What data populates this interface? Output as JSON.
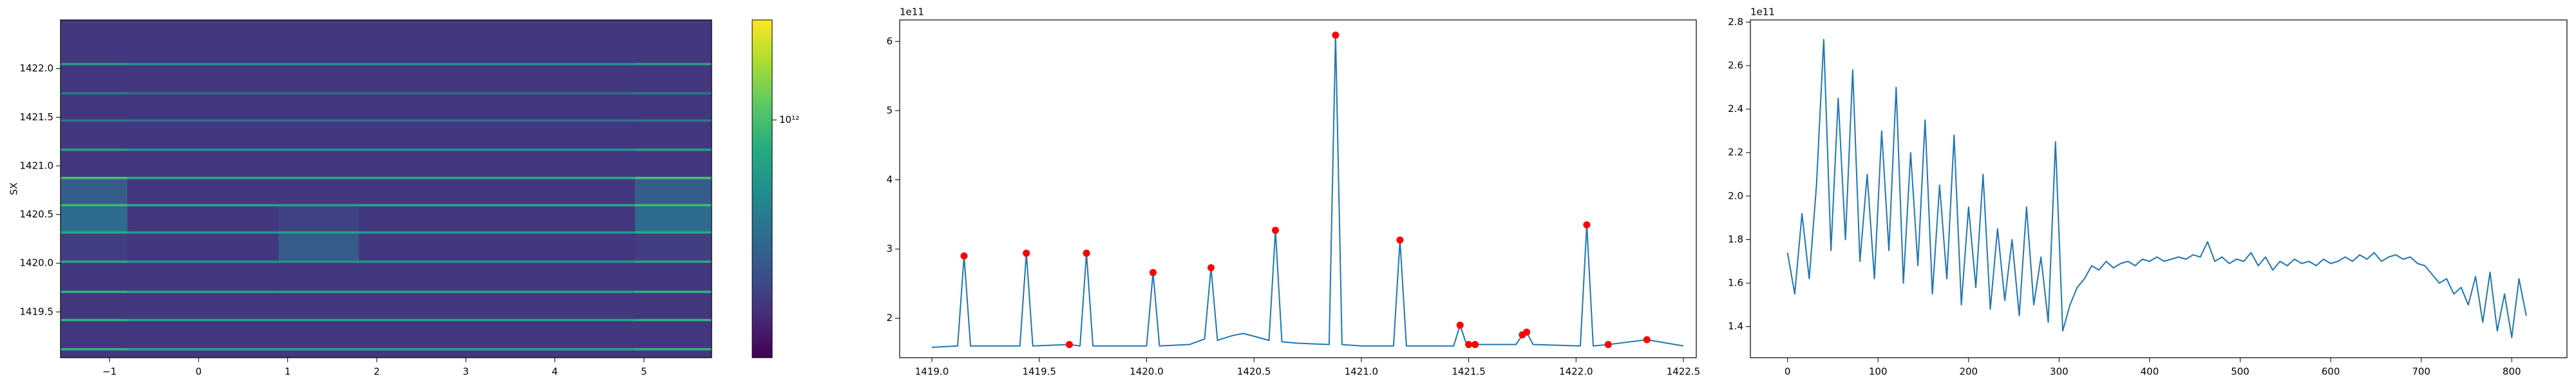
{
  "chart_data": [
    {
      "type": "heatmap",
      "ylabel": "SX",
      "colormap": "viridis",
      "color_scale": "log",
      "xlim": [
        -1.55,
        5.76
      ],
      "ylim": [
        1419.03,
        1422.5
      ],
      "xticks": [
        {
          "value": -1,
          "label": "−1"
        },
        0,
        1,
        2,
        3,
        4,
        5
      ],
      "yticks": [
        {
          "value": 1419.5,
          "label": "1419.5"
        },
        {
          "value": 1420,
          "label": "1420.0"
        },
        {
          "value": 1420.5,
          "label": "1420.5"
        },
        {
          "value": 1421,
          "label": "1421.0"
        },
        {
          "value": 1421.5,
          "label": "1421.5"
        },
        {
          "value": 1422,
          "label": "1422.0"
        }
      ],
      "clim": [
        63000000000.0,
        3200000000000.0
      ],
      "cticks": [
        {
          "value": 1000000000000.0,
          "label": "10¹²"
        }
      ],
      "x_edges": [
        -1.55,
        -0.8,
        0.9,
        1.8,
        4.9,
        5.76
      ],
      "y_edges": [
        1419.03,
        1419.108,
        1419.132,
        1419.408,
        1419.432,
        1419.698,
        1419.722,
        1420.008,
        1420.032,
        1420.308,
        1420.332,
        1420.588,
        1420.612,
        1420.868,
        1420.892,
        1421.158,
        1421.182,
        1421.458,
        1421.482,
        1421.738,
        1421.762,
        1422.038,
        1422.062,
        1422.5
      ],
      "z": [
        [
          120000000000.0,
          120000000000.0,
          120000000000.0,
          120000000000.0,
          120000000000.0
        ],
        [
          800000000000.0,
          600000000000.0,
          600000000000.0,
          600000000000.0,
          800000000000.0
        ],
        [
          120000000000.0,
          120000000000.0,
          120000000000.0,
          120000000000.0,
          120000000000.0
        ],
        [
          800000000000.0,
          600000000000.0,
          600000000000.0,
          600000000000.0,
          800000000000.0
        ],
        [
          120000000000.0,
          120000000000.0,
          120000000000.0,
          120000000000.0,
          120000000000.0
        ],
        [
          800000000000.0,
          600000000000.0,
          600000000000.0,
          600000000000.0,
          800000000000.0
        ],
        [
          120000000000.0,
          120000000000.0,
          120000000000.0,
          120000000000.0,
          120000000000.0
        ],
        [
          700000000000.0,
          500000000000.0,
          500000000000.0,
          500000000000.0,
          700000000000.0
        ],
        [
          130000000000.0,
          120000000000.0,
          200000000000.0,
          120000000000.0,
          130000000000.0
        ],
        [
          700000000000.0,
          500000000000.0,
          600000000000.0,
          500000000000.0,
          700000000000.0
        ],
        [
          250000000000.0,
          120000000000.0,
          140000000000.0,
          120000000000.0,
          250000000000.0
        ],
        [
          900000000000.0,
          600000000000.0,
          600000000000.0,
          600000000000.0,
          900000000000.0
        ],
        [
          200000000000.0,
          120000000000.0,
          120000000000.0,
          120000000000.0,
          200000000000.0
        ],
        [
          1000000000000.0,
          700000000000.0,
          700000000000.0,
          700000000000.0,
          1000000000000.0
        ],
        [
          120000000000.0,
          120000000000.0,
          120000000000.0,
          120000000000.0,
          120000000000.0
        ],
        [
          600000000000.0,
          450000000000.0,
          450000000000.0,
          450000000000.0,
          600000000000.0
        ],
        [
          120000000000.0,
          120000000000.0,
          120000000000.0,
          120000000000.0,
          120000000000.0
        ],
        [
          300000000000.0,
          250000000000.0,
          250000000000.0,
          250000000000.0,
          300000000000.0
        ],
        [
          120000000000.0,
          120000000000.0,
          120000000000.0,
          120000000000.0,
          120000000000.0
        ],
        [
          300000000000.0,
          250000000000.0,
          250000000000.0,
          250000000000.0,
          300000000000.0
        ],
        [
          120000000000.0,
          120000000000.0,
          120000000000.0,
          120000000000.0,
          120000000000.0
        ],
        [
          600000000000.0,
          450000000000.0,
          450000000000.0,
          450000000000.0,
          600000000000.0
        ],
        [
          120000000000.0,
          120000000000.0,
          120000000000.0,
          120000000000.0,
          120000000000.0
        ]
      ]
    },
    {
      "type": "line",
      "offset_text": "1e11",
      "xlim": [
        1418.85,
        1422.56
      ],
      "ylim": [
        143000000000.0,
        631000000000.0
      ],
      "xticks": [
        {
          "value": 1419,
          "label": "1419.0"
        },
        {
          "value": 1419.5,
          "label": "1419.5"
        },
        {
          "value": 1420,
          "label": "1420.0"
        },
        {
          "value": 1420.5,
          "label": "1420.5"
        },
        {
          "value": 1421,
          "label": "1421.0"
        },
        {
          "value": 1421.5,
          "label": "1421.5"
        },
        {
          "value": 1422,
          "label": "1422.0"
        },
        {
          "value": 1422.5,
          "label": "1422.5"
        }
      ],
      "yticks": [
        {
          "value": 200000000000.0,
          "label": "2"
        },
        {
          "value": 300000000000.0,
          "label": "3"
        },
        {
          "value": 400000000000.0,
          "label": "4"
        },
        {
          "value": 500000000000.0,
          "label": "5"
        },
        {
          "value": 600000000000.0,
          "label": "6"
        }
      ],
      "x": [
        1419.0,
        1419.12,
        1419.15,
        1419.18,
        1419.41,
        1419.44,
        1419.47,
        1419.64,
        1419.69,
        1419.72,
        1419.75,
        1420.0,
        1420.03,
        1420.06,
        1420.2,
        1420.27,
        1420.3,
        1420.33,
        1420.4,
        1420.45,
        1420.5,
        1420.57,
        1420.6,
        1420.63,
        1420.7,
        1420.85,
        1420.88,
        1420.91,
        1421.0,
        1421.15,
        1421.18,
        1421.21,
        1421.43,
        1421.46,
        1421.49,
        1421.53,
        1421.72,
        1421.75,
        1421.77,
        1421.8,
        1422.02,
        1422.05,
        1422.08,
        1422.15,
        1422.33,
        1422.5
      ],
      "series": [
        {
          "color": "#1f77b4",
          "values": [
            158000000000.0,
            160000000000.0,
            290000000000.0,
            160000000000.0,
            160000000000.0,
            294000000000.0,
            160000000000.0,
            162000000000.0,
            160000000000.0,
            294000000000.0,
            160000000000.0,
            160000000000.0,
            266000000000.0,
            160000000000.0,
            162000000000.0,
            170000000000.0,
            273000000000.0,
            168000000000.0,
            175000000000.0,
            178000000000.0,
            174000000000.0,
            168000000000.0,
            327000000000.0,
            166000000000.0,
            164000000000.0,
            162000000000.0,
            609000000000.0,
            162000000000.0,
            160000000000.0,
            160000000000.0,
            313000000000.0,
            160000000000.0,
            160000000000.0,
            190000000000.0,
            162000000000.0,
            162000000000.0,
            162000000000.0,
            176000000000.0,
            180000000000.0,
            162000000000.0,
            160000000000.0,
            335000000000.0,
            160000000000.0,
            162000000000.0,
            169000000000.0,
            160000000000.0
          ]
        },
        {
          "type": "scatter",
          "color": "#ff0000",
          "x": [
            1419.15,
            1419.44,
            1419.64,
            1419.72,
            1420.03,
            1420.3,
            1420.6,
            1420.88,
            1421.18,
            1421.46,
            1421.5,
            1421.53,
            1421.75,
            1421.77,
            1422.05,
            1422.15,
            1422.33
          ],
          "values": [
            290000000000.0,
            294000000000.0,
            162000000000.0,
            294000000000.0,
            266000000000.0,
            273000000000.0,
            327000000000.0,
            609000000000.0,
            313000000000.0,
            190000000000.0,
            162000000000.0,
            162000000000.0,
            176000000000.0,
            180000000000.0,
            335000000000.0,
            162000000000.0,
            169000000000.0
          ]
        }
      ]
    },
    {
      "type": "line",
      "offset_text": "1e11",
      "xlim": [
        -41,
        861
      ],
      "ylim": [
        125700000000.0,
        281000000000.0
      ],
      "xticks": [
        0,
        100,
        200,
        300,
        400,
        500,
        600,
        700,
        800
      ],
      "yticks": [
        {
          "value": 140000000000.0,
          "label": "1.4"
        },
        {
          "value": 160000000000.0,
          "label": "1.6"
        },
        {
          "value": 180000000000.0,
          "label": "1.8"
        },
        {
          "value": 200000000000.0,
          "label": "2.0"
        },
        {
          "value": 220000000000.0,
          "label": "2.2"
        },
        {
          "value": 240000000000.0,
          "label": "2.4"
        },
        {
          "value": 260000000000.0,
          "label": "2.6"
        },
        {
          "value": 280000000000.0,
          "label": "2.8"
        }
      ],
      "x": [
        0,
        8,
        16,
        24,
        32,
        40,
        48,
        56,
        64,
        72,
        80,
        88,
        96,
        104,
        112,
        120,
        128,
        136,
        144,
        152,
        160,
        168,
        176,
        184,
        192,
        200,
        208,
        216,
        224,
        232,
        240,
        248,
        256,
        264,
        272,
        280,
        288,
        296,
        304,
        312,
        320,
        328,
        336,
        344,
        352,
        360,
        368,
        376,
        384,
        392,
        400,
        408,
        416,
        424,
        432,
        440,
        448,
        456,
        464,
        472,
        480,
        488,
        496,
        504,
        512,
        520,
        528,
        536,
        544,
        552,
        560,
        568,
        576,
        584,
        592,
        600,
        608,
        616,
        624,
        632,
        640,
        648,
        656,
        664,
        672,
        680,
        688,
        696,
        704,
        712,
        720,
        728,
        736,
        744,
        752,
        760,
        768,
        776,
        784,
        792,
        800,
        808,
        816
      ],
      "series": [
        {
          "color": "#1f77b4",
          "values": [
            174000000000.0,
            155000000000.0,
            192000000000.0,
            162000000000.0,
            205000000000.0,
            272000000000.0,
            175000000000.0,
            245000000000.0,
            180000000000.0,
            258000000000.0,
            170000000000.0,
            210000000000.0,
            162000000000.0,
            230000000000.0,
            175000000000.0,
            250000000000.0,
            160000000000.0,
            220000000000.0,
            168000000000.0,
            235000000000.0,
            155000000000.0,
            205000000000.0,
            162000000000.0,
            228000000000.0,
            150000000000.0,
            195000000000.0,
            158000000000.0,
            210000000000.0,
            148000000000.0,
            185000000000.0,
            152000000000.0,
            180000000000.0,
            145000000000.0,
            195000000000.0,
            150000000000.0,
            172000000000.0,
            142000000000.0,
            225000000000.0,
            138000000000.0,
            150000000000.0,
            158000000000.0,
            162000000000.0,
            168000000000.0,
            166000000000.0,
            170000000000.0,
            167000000000.0,
            169000000000.0,
            170000000000.0,
            168000000000.0,
            171000000000.0,
            170000000000.0,
            172000000000.0,
            170000000000.0,
            171000000000.0,
            172000000000.0,
            171000000000.0,
            173000000000.0,
            172000000000.0,
            179000000000.0,
            170000000000.0,
            172000000000.0,
            169000000000.0,
            171000000000.0,
            170000000000.0,
            174000000000.0,
            168000000000.0,
            172000000000.0,
            166000000000.0,
            170000000000.0,
            168000000000.0,
            171000000000.0,
            169000000000.0,
            170000000000.0,
            168000000000.0,
            171000000000.0,
            169000000000.0,
            170000000000.0,
            172000000000.0,
            170000000000.0,
            173000000000.0,
            171000000000.0,
            174000000000.0,
            170000000000.0,
            172000000000.0,
            173000000000.0,
            171000000000.0,
            172000000000.0,
            169000000000.0,
            168000000000.0,
            164000000000.0,
            160000000000.0,
            162000000000.0,
            155000000000.0,
            158000000000.0,
            150000000000.0,
            163000000000.0,
            142000000000.0,
            165000000000.0,
            138000000000.0,
            155000000000.0,
            135000000000.0,
            162000000000.0,
            145000000000.0
          ]
        }
      ]
    }
  ]
}
